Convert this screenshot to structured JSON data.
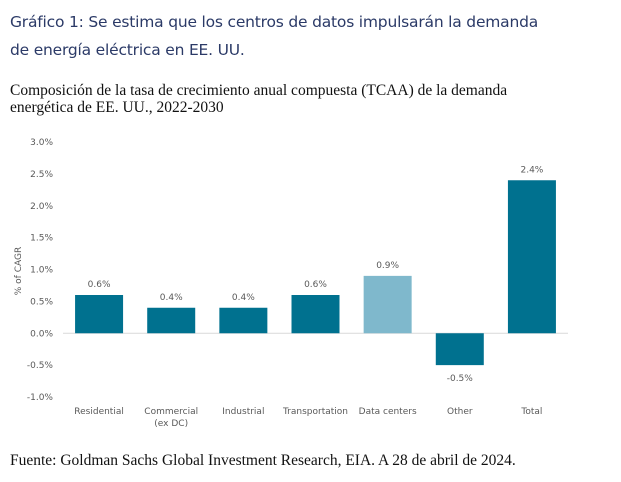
{
  "headline": {
    "line1": "Gráfico 1: Se estima que los centros de datos impulsarán la demanda",
    "line2": "de energía eléctrica en EE. UU."
  },
  "subtitle": {
    "line1": "Composición de la tasa de crecimiento anual compuesta (TCAA) de la demanda",
    "line2": "energética de EE. UU., 2022-2030"
  },
  "source": "Fuente: Goldman Sachs Global Investment Research, EIA. A 28 de abril de 2024.",
  "colors": {
    "primary_bar": "#00718f",
    "highlight_bar": "#7fb8cc",
    "axis_line": "#d9d9d9",
    "text_muted": "#595959",
    "headline": "#2b3a67"
  },
  "chart_data": {
    "type": "bar",
    "title": "Composición de la tasa de crecimiento anual compuesta (TCAA) de la demanda energética de EE. UU., 2022-2030",
    "xlabel": "",
    "ylabel": "% of CAGR",
    "ylim": [
      -1.0,
      3.0
    ],
    "yticks": [
      3.0,
      2.5,
      2.0,
      1.5,
      1.0,
      0.5,
      0.0,
      -0.5,
      -1.0
    ],
    "ytick_labels": [
      "3.0%",
      "2.5%",
      "2.0%",
      "1.5%",
      "1.0%",
      "0.5%",
      "0.0%",
      "-0.5%",
      "-1.0%"
    ],
    "grid": false,
    "legend": "none",
    "categories": [
      [
        "Residential"
      ],
      [
        "Commercial",
        "(ex DC)"
      ],
      [
        "Industrial"
      ],
      [
        "Transportation"
      ],
      [
        "Data centers"
      ],
      [
        "Other"
      ],
      [
        "Total"
      ]
    ],
    "values": [
      0.6,
      0.4,
      0.4,
      0.6,
      0.9,
      -0.5,
      2.4
    ],
    "data_labels": [
      "0.6%",
      "0.4%",
      "0.4%",
      "0.6%",
      "0.9%",
      "-0.5%",
      "2.4%"
    ],
    "highlight": [
      false,
      false,
      false,
      false,
      true,
      false,
      false
    ]
  }
}
